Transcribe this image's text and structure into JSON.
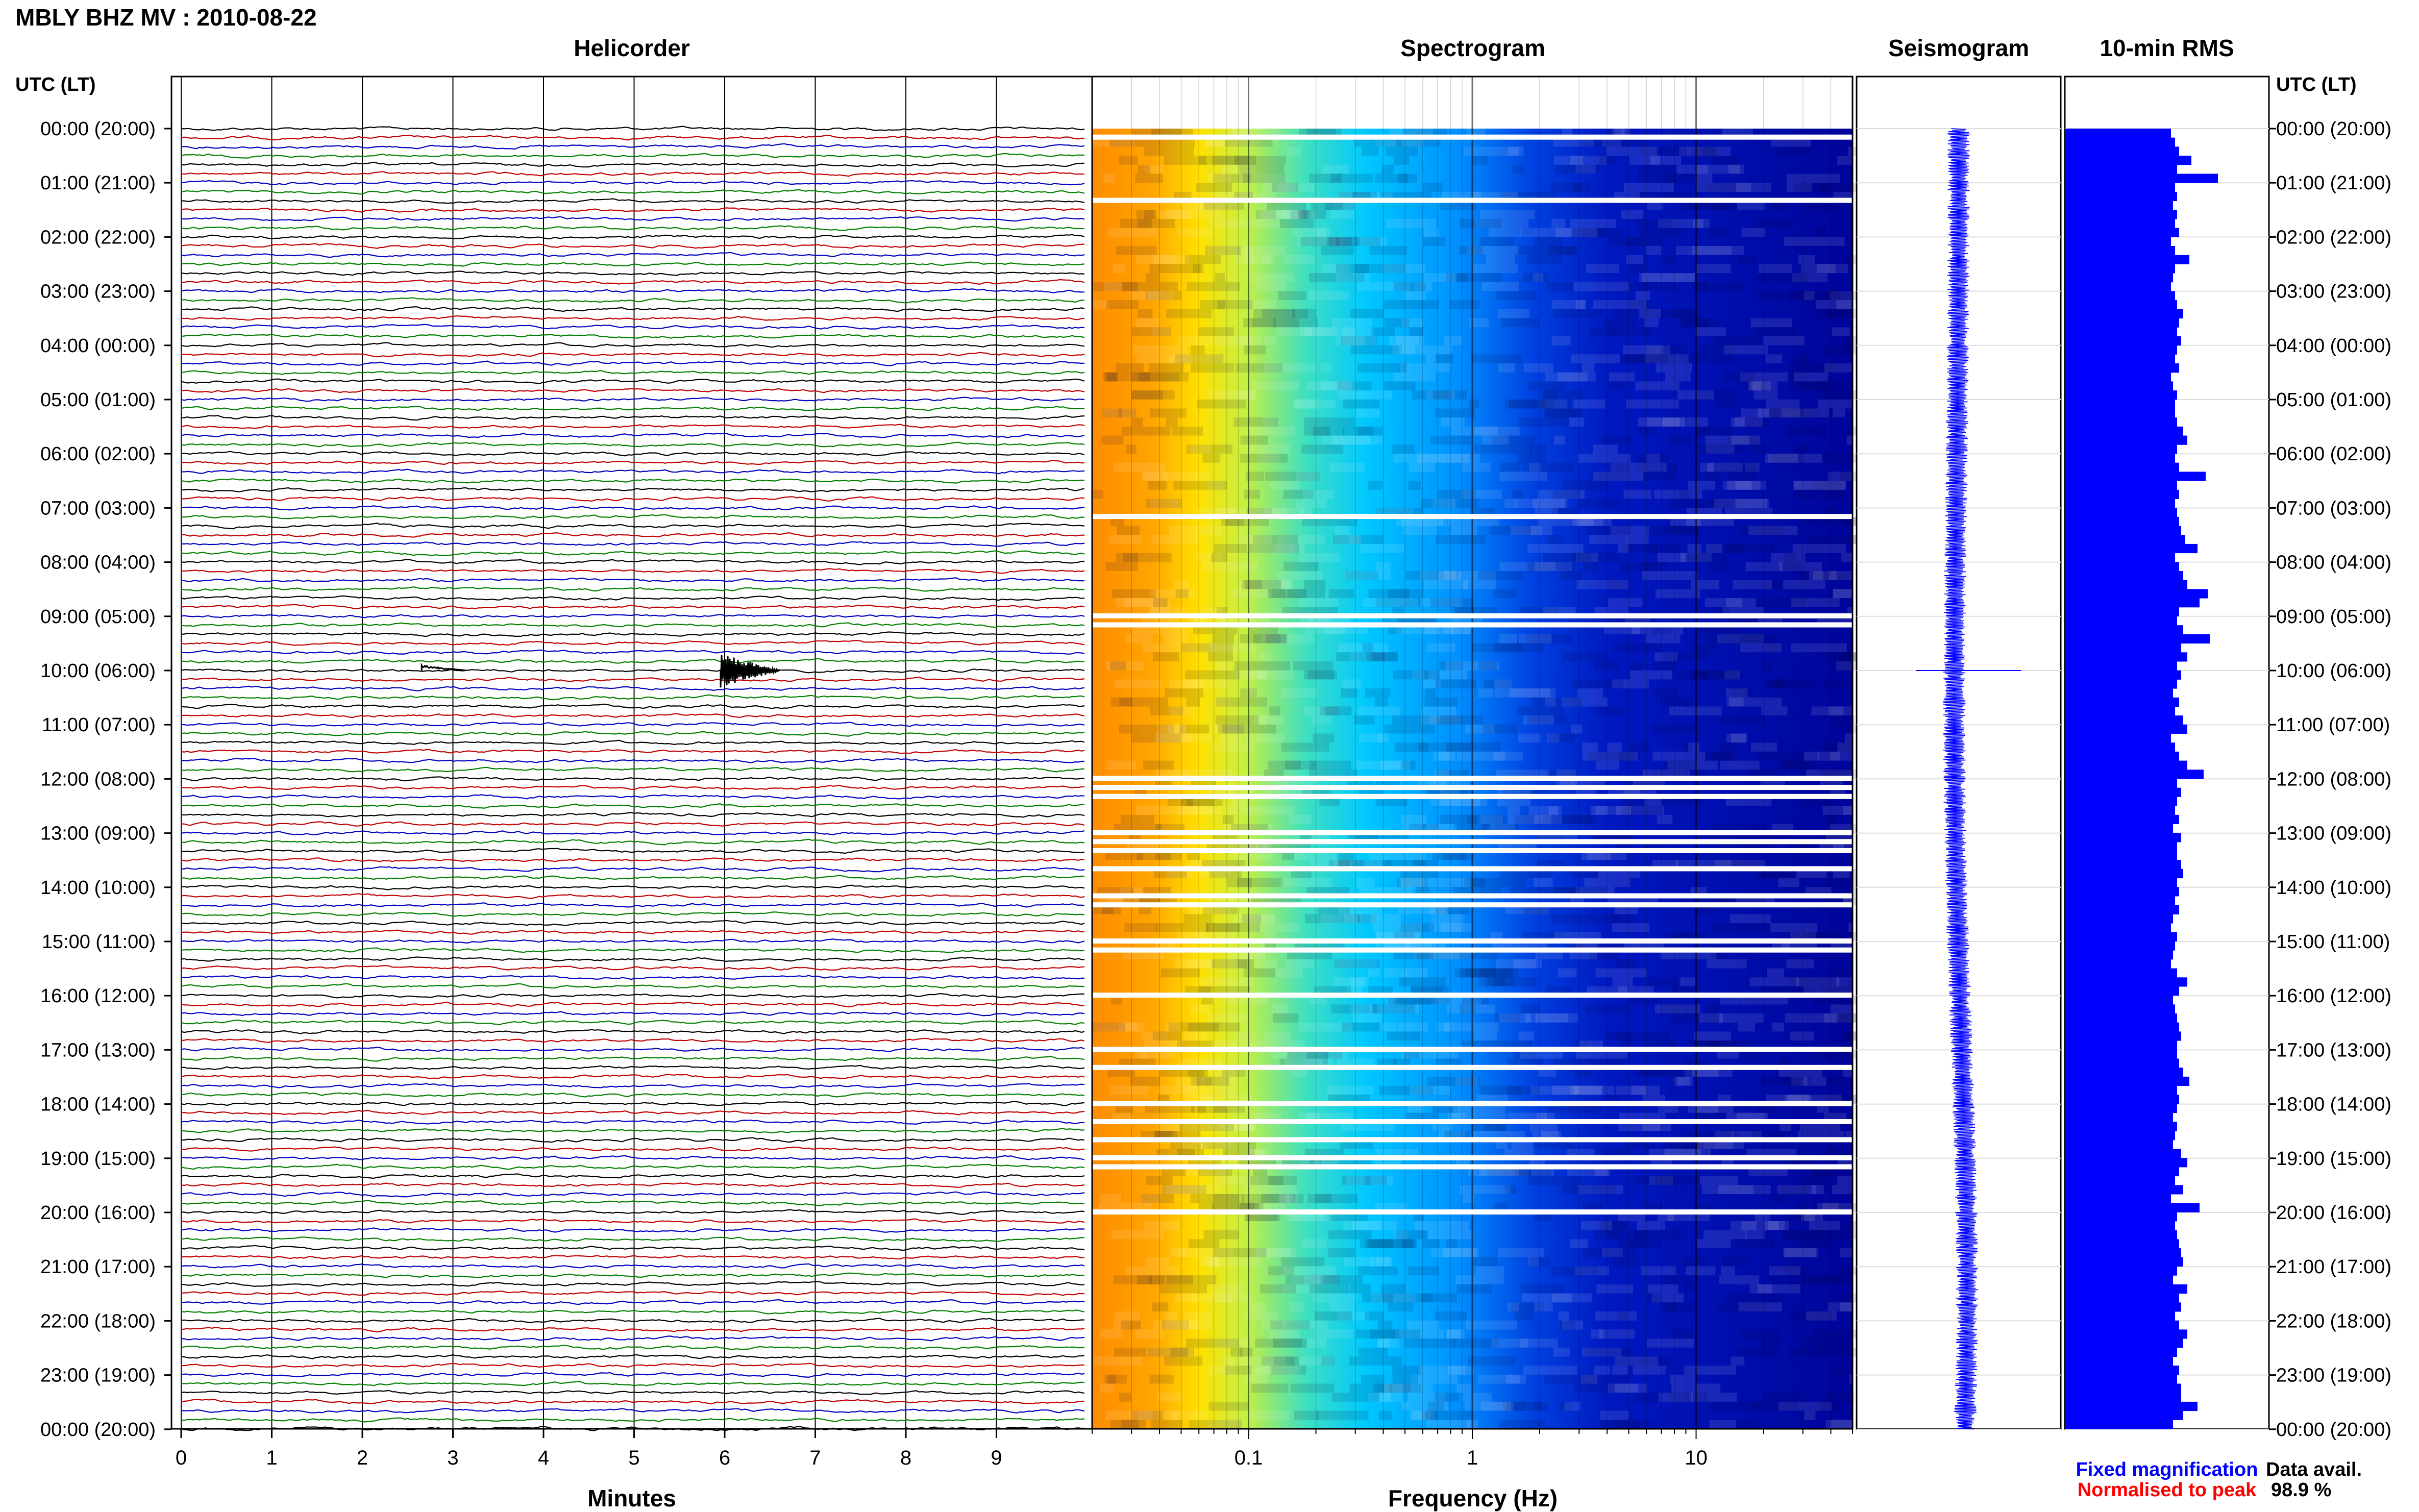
{
  "header": {
    "station_title": "MBLY BHZ MV : 2010-08-22",
    "helicorder_title": "Helicorder",
    "spectrogram_title": "Spectrogram",
    "seismogram_title": "Seismogram",
    "rms_title": "10-min RMS",
    "utc_label_left": "UTC (LT)",
    "utc_label_right": "UTC (LT)"
  },
  "footer": {
    "minutes_label": "Minutes",
    "frequency_label": "Frequency (Hz)",
    "legend_fixed": "Fixed magnification",
    "legend_normalised": "Normalised to peak",
    "data_avail_label": "Data avail.",
    "data_avail_value": "98.9 %"
  },
  "colors": {
    "helicorder_traces": [
      "#000000",
      "#c00000",
      "#0000c0",
      "#008000"
    ],
    "rms_bar": "#0000ff",
    "seismogram": "#0000ff",
    "legend_fixed": "#0000ff",
    "legend_normalised": "#ff0000",
    "spectrogram_low": "#00008b",
    "spectrogram_high": "#ff8c00"
  },
  "time_labels": [
    "00:00 (20:00)",
    "01:00 (21:00)",
    "02:00 (22:00)",
    "03:00 (23:00)",
    "04:00 (00:00)",
    "05:00 (01:00)",
    "06:00 (02:00)",
    "07:00 (03:00)",
    "08:00 (04:00)",
    "09:00 (05:00)",
    "10:00 (06:00)",
    "11:00 (07:00)",
    "12:00 (08:00)",
    "13:00 (09:00)",
    "14:00 (10:00)",
    "15:00 (11:00)",
    "16:00 (12:00)",
    "17:00 (13:00)",
    "18:00 (14:00)",
    "19:00 (15:00)",
    "20:00 (16:00)",
    "21:00 (17:00)",
    "22:00 (18:00)",
    "23:00 (19:00)",
    "00:00 (20:00)"
  ],
  "chart_data": [
    {
      "type": "line",
      "title": "Helicorder",
      "xlabel": "Minutes",
      "x_ticks": [
        "0",
        "1",
        "2",
        "3",
        "4",
        "5",
        "6",
        "7",
        "8",
        "9"
      ],
      "xlim": [
        0,
        10
      ],
      "trace_count": 144,
      "trace_duration_minutes": 10,
      "notable_events": [
        {
          "time_utc": "10:00",
          "minute": 6.0,
          "description": "large event"
        },
        {
          "time_utc": "10:00",
          "minute": 2.7,
          "description": "small event"
        }
      ]
    },
    {
      "type": "heatmap",
      "title": "Spectrogram",
      "xlabel": "Frequency (Hz)",
      "x_scale": "log",
      "x_ticks": [
        "0.1",
        "1",
        "10"
      ],
      "xlim": [
        0.02,
        50
      ],
      "gap_rows_utc": [
        "00:10",
        "01:20",
        "07:10",
        "09:00",
        "09:10",
        "12:00",
        "12:10",
        "12:20",
        "13:00",
        "13:10",
        "13:20",
        "13:40",
        "14:10",
        "14:20",
        "15:00",
        "15:10",
        "16:00",
        "17:00",
        "17:20",
        "18:00",
        "18:20",
        "18:40",
        "19:00",
        "19:10",
        "20:00"
      ]
    },
    {
      "type": "line",
      "title": "Seismogram",
      "description_mode": "normalised trace per 10-min window"
    },
    {
      "type": "bar",
      "title": "10-min RMS",
      "orientation": "horizontal",
      "bin_minutes": 10,
      "values": [
        0.52,
        0.54,
        0.56,
        0.62,
        0.55,
        0.75,
        0.54,
        0.55,
        0.53,
        0.55,
        0.54,
        0.56,
        0.52,
        0.54,
        0.61,
        0.54,
        0.53,
        0.52,
        0.54,
        0.55,
        0.58,
        0.56,
        0.55,
        0.57,
        0.55,
        0.54,
        0.56,
        0.52,
        0.53,
        0.55,
        0.54,
        0.54,
        0.55,
        0.58,
        0.6,
        0.55,
        0.54,
        0.56,
        0.69,
        0.55,
        0.56,
        0.54,
        0.55,
        0.56,
        0.57,
        0.59,
        0.65,
        0.54,
        0.56,
        0.58,
        0.6,
        0.7,
        0.66,
        0.56,
        0.55,
        0.58,
        0.71,
        0.57,
        0.6,
        0.55,
        0.57,
        0.55,
        0.53,
        0.56,
        0.54,
        0.58,
        0.6,
        0.52,
        0.54,
        0.56,
        0.6,
        0.68,
        0.55,
        0.57,
        0.55,
        0.54,
        0.56,
        0.53,
        0.57,
        0.55,
        0.55,
        0.57,
        0.58,
        0.55,
        0.56,
        0.54,
        0.56,
        0.53,
        0.52,
        0.55,
        0.54,
        0.53,
        0.52,
        0.55,
        0.6,
        0.56,
        0.53,
        0.54,
        0.55,
        0.56,
        0.57,
        0.55,
        0.55,
        0.56,
        0.58,
        0.61,
        0.55,
        0.56,
        0.55,
        0.53,
        0.55,
        0.54,
        0.53,
        0.57,
        0.6,
        0.56,
        0.54,
        0.58,
        0.52,
        0.66,
        0.55,
        0.54,
        0.55,
        0.56,
        0.57,
        0.58,
        0.55,
        0.53,
        0.6,
        0.56,
        0.57,
        0.54,
        0.56,
        0.6,
        0.58,
        0.55,
        0.53,
        0.56,
        0.55,
        0.57,
        0.57,
        0.65,
        0.58,
        0.53
      ]
    }
  ]
}
